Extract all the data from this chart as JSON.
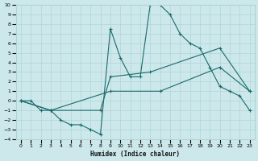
{
  "xlabel": "Humidex (Indice chaleur)",
  "xlim": [
    -0.5,
    23.5
  ],
  "ylim": [
    -4,
    10
  ],
  "bg_color": "#cce8ea",
  "grid_color": "#b0d4d6",
  "line_color": "#1a6b6b",
  "line1_x": [
    0,
    1,
    2,
    3,
    4,
    5,
    6,
    7,
    8,
    9,
    10,
    11,
    12,
    13,
    14,
    15,
    16,
    17,
    18,
    19,
    20,
    21,
    22,
    23
  ],
  "line1_y": [
    0,
    0,
    -1,
    -1,
    -2,
    -2.5,
    -2.5,
    -3,
    -3.5,
    7.5,
    4.5,
    2.5,
    2.5,
    10,
    10,
    9,
    7,
    6,
    5.5,
    3.5,
    1.5,
    1,
    0.5,
    -1
  ],
  "line2_x": [
    0,
    3,
    8,
    9,
    13,
    20,
    23
  ],
  "line2_y": [
    0,
    -1,
    -1,
    2.5,
    3,
    5.5,
    1
  ],
  "line3_x": [
    0,
    3,
    9,
    14,
    20,
    23
  ],
  "line3_y": [
    0,
    -1,
    1,
    1,
    3.5,
    1
  ]
}
